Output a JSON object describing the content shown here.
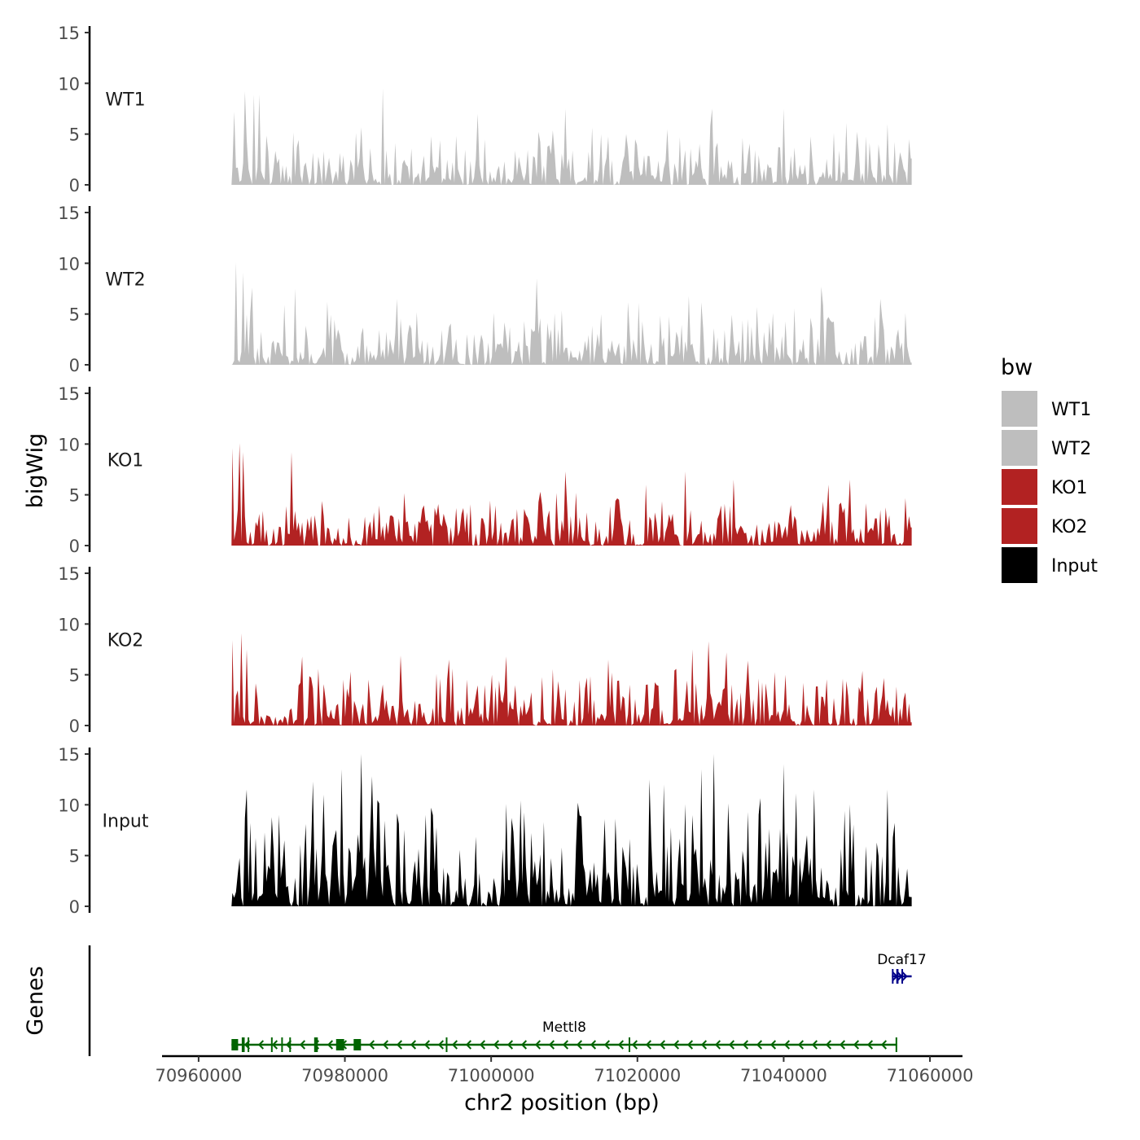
{
  "chart_data": {
    "type": "area",
    "title": "",
    "ylabel": "bigWig",
    "xlabel": "chr2 position (bp)",
    "xlim": [
      70955000,
      71062000
    ],
    "data_range": [
      70964500,
      71057500
    ],
    "ylim": [
      0,
      15
    ],
    "yticks": [
      0,
      5,
      10,
      15
    ],
    "xticks": [
      70960000,
      70980000,
      71000000,
      71020000,
      71040000,
      71060000
    ],
    "xtick_labels": [
      "70960000",
      "70980000",
      "71000000",
      "71020000",
      "71040000",
      "71060000"
    ],
    "tracks": [
      {
        "name": "WT1",
        "color": "#bebebe",
        "n_bins": 380,
        "typical_max": 4.5,
        "peak_max": 9.5,
        "seed": 11,
        "anchors": [
          [
            70964700,
            7.2
          ],
          [
            70966200,
            9.2
          ],
          [
            70967400,
            8.9
          ],
          [
            70968100,
            8.9
          ],
          [
            70985100,
            9.5
          ],
          [
            70998000,
            7.0
          ],
          [
            71010000,
            7.5
          ],
          [
            71030000,
            7.5
          ],
          [
            71040000,
            7.5
          ],
          [
            71054000,
            6.0
          ]
        ]
      },
      {
        "name": "WT2",
        "color": "#bebebe",
        "n_bins": 380,
        "typical_max": 4.5,
        "peak_max": 10.2,
        "seed": 23,
        "anchors": [
          [
            70965100,
            10.1
          ],
          [
            70965900,
            9.1
          ],
          [
            70967200,
            7.6
          ],
          [
            70973000,
            7.5
          ],
          [
            70987000,
            6.5
          ],
          [
            71006000,
            8.5
          ],
          [
            71027000,
            6.8
          ],
          [
            71045000,
            7.7
          ],
          [
            71053000,
            6.5
          ]
        ]
      },
      {
        "name": "KO1",
        "color": "#b22222",
        "n_bins": 380,
        "typical_max": 3.8,
        "peak_max": 10.1,
        "seed": 37,
        "anchors": [
          [
            70964600,
            9.6
          ],
          [
            70965400,
            10.1
          ],
          [
            70966000,
            9.2
          ],
          [
            70972600,
            9.2
          ],
          [
            71010000,
            7.3
          ],
          [
            71021000,
            6.0
          ],
          [
            71026500,
            7.3
          ],
          [
            71033000,
            6.5
          ],
          [
            71046000,
            6.0
          ],
          [
            71049000,
            6.5
          ]
        ]
      },
      {
        "name": "KO2",
        "color": "#b22222",
        "n_bins": 380,
        "typical_max": 4.2,
        "peak_max": 9.2,
        "seed": 53,
        "anchors": [
          [
            70964600,
            8.4
          ],
          [
            70965800,
            9.1
          ],
          [
            70966400,
            7.5
          ],
          [
            70974000,
            6.8
          ],
          [
            70987500,
            6.9
          ],
          [
            70994000,
            6.5
          ],
          [
            71002000,
            6.8
          ],
          [
            71016000,
            6.5
          ],
          [
            71027500,
            7.5
          ],
          [
            71029500,
            8.3
          ],
          [
            71032000,
            7.2
          ],
          [
            71035000,
            6.4
          ]
        ]
      },
      {
        "name": "Input",
        "color": "#000000",
        "n_bins": 380,
        "typical_max": 8.0,
        "peak_max": 15.0,
        "seed": 71,
        "anchors": [
          [
            70966400,
            11.5
          ],
          [
            70975500,
            12.3
          ],
          [
            70977000,
            11.0
          ],
          [
            70979500,
            13.5
          ],
          [
            70982100,
            15.0
          ],
          [
            70983500,
            12.8
          ],
          [
            71021500,
            12.5
          ],
          [
            71023500,
            12.0
          ],
          [
            71028500,
            13.5
          ],
          [
            71030300,
            15.0
          ],
          [
            71039900,
            14.0
          ],
          [
            71044000,
            11.5
          ],
          [
            71054000,
            11.5
          ]
        ]
      }
    ],
    "legend": {
      "title": "bw",
      "position": "right",
      "entries": [
        {
          "label": "WT1",
          "color": "#bebebe"
        },
        {
          "label": "WT2",
          "color": "#bebebe"
        },
        {
          "label": "KO1",
          "color": "#b22222"
        },
        {
          "label": "KO2",
          "color": "#b22222"
        },
        {
          "label": "Input",
          "color": "#000000"
        }
      ]
    },
    "genes_panel": {
      "label": "Genes",
      "genes": [
        {
          "name": "Mettl8",
          "start": 70964500,
          "end": 71055500,
          "strand": "-",
          "color": "#006400",
          "exons": [
            [
              70964500,
              70965400
            ],
            [
              70965900,
              70966300
            ],
            [
              70966700,
              70966900
            ],
            [
              70969900,
              70970100
            ],
            [
              70971300,
              70971500
            ],
            [
              70972400,
              70972600
            ],
            [
              70975800,
              70976300
            ],
            [
              70978800,
              70979900
            ],
            [
              70981200,
              70982200
            ],
            [
              70993800,
              70994000
            ],
            [
              71018800,
              71019000
            ],
            [
              71055300,
              71055500
            ]
          ]
        },
        {
          "name": "Dcaf17",
          "start": 71054800,
          "end": 71057500,
          "strand": "+",
          "color": "#00008b",
          "exons": [
            [
              71054800,
              71055000
            ],
            [
              71055400,
              71055700
            ],
            [
              71056100,
              71056300
            ]
          ]
        }
      ]
    }
  }
}
